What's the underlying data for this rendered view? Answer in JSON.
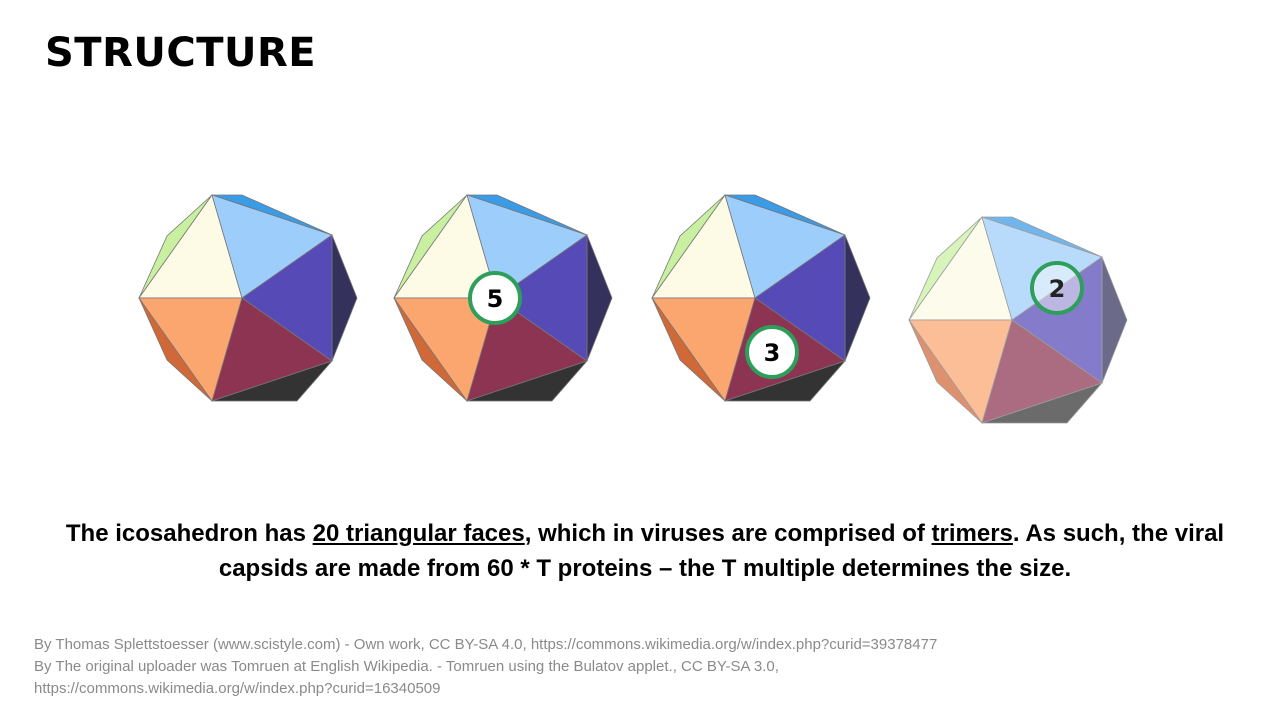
{
  "slide": {
    "title": "STRUCTURE"
  },
  "figures": {
    "badges": [
      {
        "label": "5",
        "ring_color": "#2e9e5b"
      },
      {
        "label": "3",
        "ring_color": "#2e9e5b"
      },
      {
        "label": "2",
        "ring_color": "#2e9e5b"
      }
    ]
  },
  "caption": {
    "part1": "The icosahedron has ",
    "faces": "20 triangular faces",
    "part2": ", which in viruses are comprised of ",
    "trimers": "trimers",
    "part3": ". As such, the viral capsids are made from 60 * T proteins – the T multiple determines the size."
  },
  "credits": {
    "line1": "By Thomas Splettstoesser (www.scistyle.com) - Own work, CC BY-SA 4.0, https://commons.wikimedia.org/w/index.php?curid=39378477",
    "line2": "By The original uploader was Tomruen at English Wikipedia. - Tomruen using the Bulatov applet., CC BY-SA 3.0,",
    "line3": "https://commons.wikimedia.org/w/index.php?curid=16340509"
  },
  "colors": {
    "pale_yellow": "#fdfbe6",
    "light_green": "#c8f0a0",
    "light_blue": "#9dcdfa",
    "blue_top": "#3a9be6",
    "purple": "#564bb6",
    "dark_purple": "#34315c",
    "orange": "#fba66e",
    "dark_orange": "#d06838",
    "maroon": "#8c3452",
    "dark_gray": "#333333",
    "badge_ring": "#2e9e5b"
  }
}
